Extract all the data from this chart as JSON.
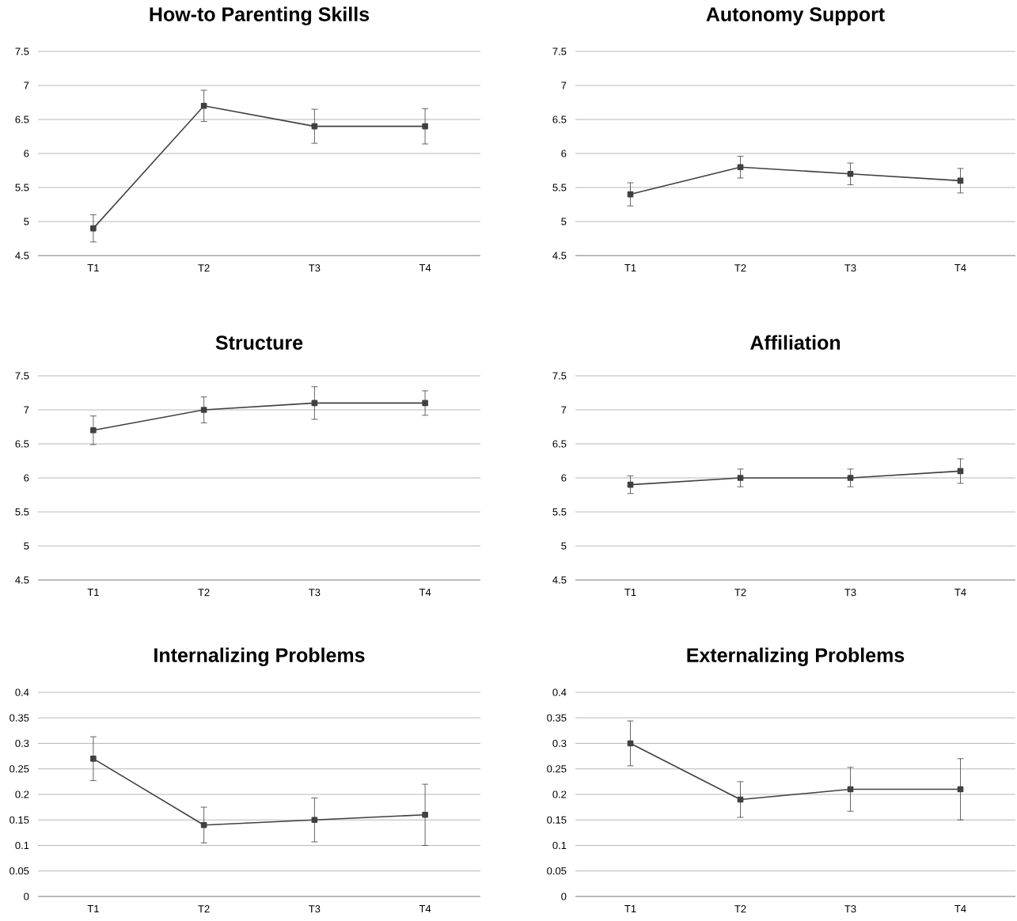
{
  "chart_data": [
    {
      "type": "line",
      "title": "How-to Parenting Skills",
      "categories": [
        "T1",
        "T2",
        "T3",
        "T4"
      ],
      "values": [
        4.9,
        6.7,
        6.4,
        6.4
      ],
      "errors": [
        0.2,
        0.23,
        0.25,
        0.26
      ],
      "color": "#404040",
      "marker": "square",
      "grid": "y",
      "ylim": [
        4.5,
        7.5
      ],
      "yticks": [
        4.5,
        5,
        5.5,
        6,
        6.5,
        7,
        7.5
      ]
    },
    {
      "type": "line",
      "title": "Autonomy Support",
      "categories": [
        "T1",
        "T2",
        "T3",
        "T4"
      ],
      "values": [
        5.4,
        5.8,
        5.7,
        5.6
      ],
      "errors": [
        0.17,
        0.16,
        0.16,
        0.18
      ],
      "color": "#404040",
      "marker": "square",
      "grid": "y",
      "ylim": [
        4.5,
        7.5
      ],
      "yticks": [
        4.5,
        5,
        5.5,
        6,
        6.5,
        7,
        7.5
      ]
    },
    {
      "type": "line",
      "title": "Structure",
      "categories": [
        "T1",
        "T2",
        "T3",
        "T4"
      ],
      "values": [
        6.7,
        7.0,
        7.1,
        7.1
      ],
      "errors": [
        0.21,
        0.19,
        0.24,
        0.18
      ],
      "color": "#404040",
      "marker": "square",
      "grid": "y",
      "ylim": [
        4.5,
        7.5
      ],
      "yticks": [
        4.5,
        5,
        5.5,
        6,
        6.5,
        7,
        7.5
      ]
    },
    {
      "type": "line",
      "title": "Affiliation",
      "categories": [
        "T1",
        "T2",
        "T3",
        "T4"
      ],
      "values": [
        5.9,
        6.0,
        6.0,
        6.1
      ],
      "errors": [
        0.13,
        0.13,
        0.13,
        0.18
      ],
      "color": "#404040",
      "marker": "square",
      "grid": "y",
      "ylim": [
        4.5,
        7.5
      ],
      "yticks": [
        4.5,
        5,
        5.5,
        6,
        6.5,
        7,
        7.5
      ]
    },
    {
      "type": "line",
      "title": "Internalizing Problems",
      "categories": [
        "T1",
        "T2",
        "T3",
        "T4"
      ],
      "values": [
        0.27,
        0.14,
        0.15,
        0.16
      ],
      "errors": [
        0.043,
        0.035,
        0.043,
        0.06
      ],
      "color": "#404040",
      "marker": "square",
      "grid": "y",
      "ylim": [
        0,
        0.4
      ],
      "yticks": [
        0,
        0.05,
        0.1,
        0.15,
        0.2,
        0.25,
        0.3,
        0.35,
        0.4
      ]
    },
    {
      "type": "line",
      "title": "Externalizing Problems",
      "categories": [
        "T1",
        "T2",
        "T3",
        "T4"
      ],
      "values": [
        0.3,
        0.19,
        0.21,
        0.21
      ],
      "errors": [
        0.044,
        0.035,
        0.043,
        0.06
      ],
      "color": "#404040",
      "marker": "square",
      "grid": "y",
      "ylim": [
        0,
        0.4
      ],
      "yticks": [
        0,
        0.05,
        0.1,
        0.15,
        0.2,
        0.25,
        0.3,
        0.35,
        0.4
      ]
    }
  ]
}
